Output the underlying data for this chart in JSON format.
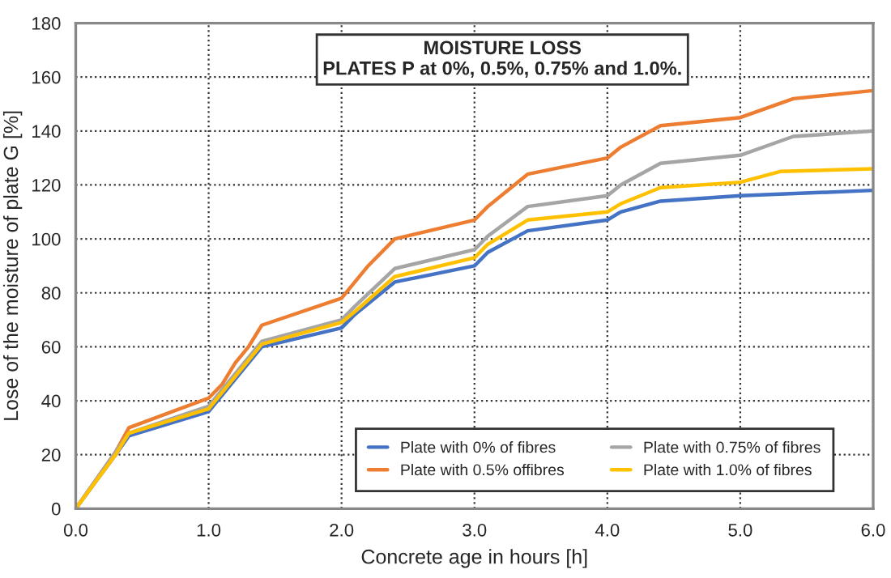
{
  "chart_data": {
    "type": "line",
    "title": "MOISTURE LOSS",
    "subtitle": "PLATES P at 0%, 0.5%, 0.75% and 1.0%.",
    "xlabel": "Concrete age in hours [h]",
    "ylabel": "Lose of the moisture of plate G [%]",
    "series": [
      {
        "name": "Plate with 0% of fibres",
        "color": "#4472c4",
        "x": [
          0,
          0.3,
          0.4,
          1.0,
          1.1,
          1.4,
          2.0,
          2.1,
          2.4,
          3.0,
          3.1,
          3.4,
          4.0,
          4.1,
          4.4,
          5.0,
          6.0
        ],
        "values": [
          0,
          20,
          27,
          36,
          42,
          60,
          67,
          72,
          84,
          90,
          95,
          103,
          107,
          110,
          114,
          116,
          118
        ]
      },
      {
        "name": "Plate with 0.5% offibres",
        "color": "#ed7d31",
        "x": [
          0,
          0.3,
          0.4,
          1.0,
          1.1,
          1.2,
          1.3,
          1.4,
          2.0,
          2.1,
          2.2,
          2.4,
          3.0,
          3.1,
          3.4,
          4.0,
          4.1,
          4.4,
          5.0,
          5.4,
          6.0
        ],
        "values": [
          0,
          21,
          30,
          41,
          46,
          54,
          60,
          68,
          78,
          84,
          90,
          100,
          107,
          112,
          124,
          130,
          134,
          142,
          145,
          152,
          155
        ]
      },
      {
        "name": "Plate with 0.75% of fibres",
        "color": "#a5a5a5",
        "x": [
          0,
          0.3,
          0.4,
          1.0,
          1.1,
          1.4,
          2.0,
          2.1,
          2.4,
          3.0,
          3.1,
          3.4,
          4.0,
          4.1,
          4.4,
          5.0,
          5.4,
          6.0
        ],
        "values": [
          0,
          21,
          28,
          38,
          44,
          62,
          70,
          75,
          89,
          96,
          101,
          112,
          116,
          120,
          128,
          131,
          138,
          140
        ]
      },
      {
        "name": "Plate with 1.0% of fibres",
        "color": "#ffc000",
        "x": [
          0,
          0.3,
          0.4,
          1.0,
          1.1,
          1.4,
          2.0,
          2.1,
          2.4,
          3.0,
          3.1,
          3.4,
          4.0,
          4.1,
          4.4,
          5.0,
          5.3,
          6.0
        ],
        "values": [
          0,
          20,
          28,
          37,
          43,
          61,
          69,
          73,
          86,
          93,
          98,
          107,
          110,
          113,
          119,
          121,
          125,
          126
        ]
      }
    ],
    "xlim": [
      0,
      6
    ],
    "xticks": [
      {
        "value": 0,
        "label": "0.0"
      },
      {
        "value": 1,
        "label": "1.0"
      },
      {
        "value": 2,
        "label": "2.0"
      },
      {
        "value": 3,
        "label": "3.0"
      },
      {
        "value": 4,
        "label": "4.0"
      },
      {
        "value": 5,
        "label": "5.0"
      },
      {
        "value": 6,
        "label": "6.0"
      }
    ],
    "ylim": [
      0,
      180
    ],
    "yticks": [
      0,
      20,
      40,
      60,
      80,
      100,
      120,
      140,
      160,
      180
    ],
    "grid": true,
    "legend": "bottom right",
    "marker": "none",
    "line_style": "solid"
  }
}
